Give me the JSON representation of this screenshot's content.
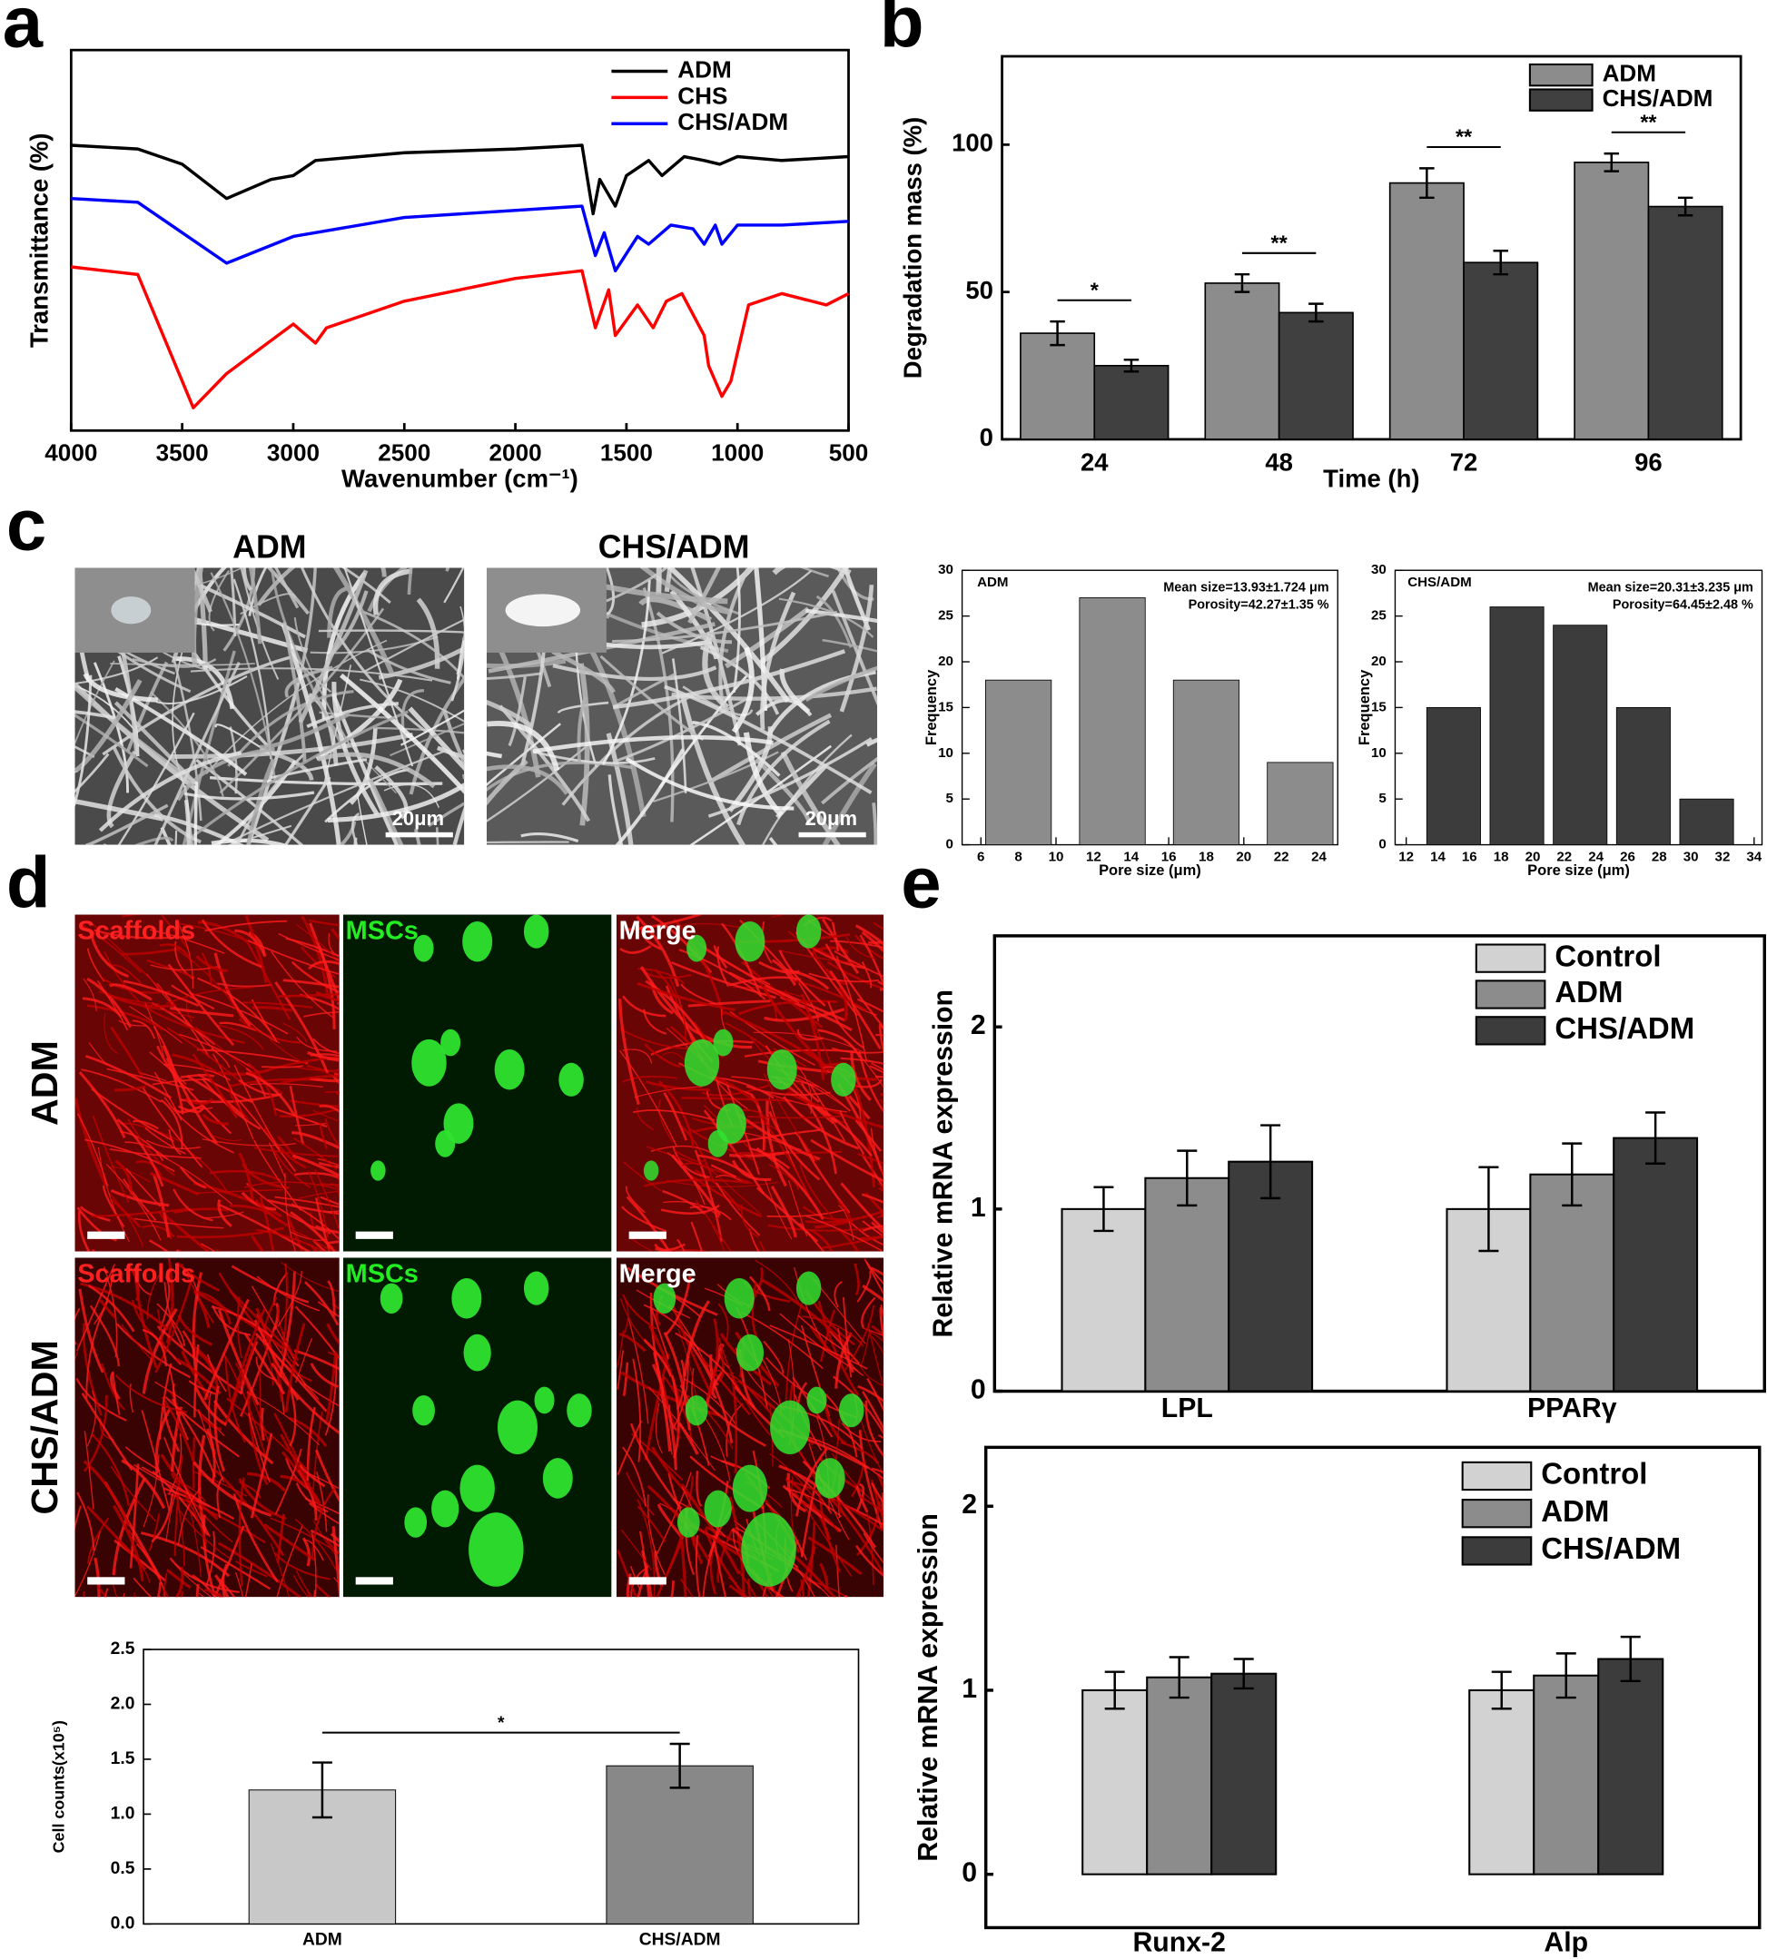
{
  "panel_labels": [
    "a",
    "b",
    "c",
    "d",
    "e"
  ],
  "micrographs": {
    "titles": [
      "ADM",
      "CHS/ADM"
    ],
    "scale_bar": "20μm"
  },
  "fluorescence": {
    "columns": [
      "Scaffolds",
      "MSCs",
      "Merge"
    ],
    "rows": [
      "ADM",
      "CHS/ADM"
    ]
  },
  "chart_data": [
    {
      "type": "line",
      "xlabel": "Wavenumber (cm⁻¹)",
      "ylabel": "Transmittance (%)",
      "xlim": [
        4000,
        500
      ],
      "xticks": [
        4000,
        3500,
        3000,
        2500,
        2000,
        1500,
        1000,
        500
      ],
      "ylim": [
        0,
        100
      ],
      "legend": "upper right",
      "series": [
        {
          "name": "ADM",
          "color": "#000000",
          "x": [
            4000,
            3700,
            3500,
            3300,
            3100,
            3000,
            2900,
            2500,
            2000,
            1700,
            1650,
            1620,
            1550,
            1500,
            1450,
            1400,
            1340,
            1240,
            1150,
            1080,
            1000,
            800,
            500
          ],
          "values": [
            75,
            74,
            70,
            61,
            66,
            67,
            71,
            73,
            74,
            75,
            57,
            66,
            59,
            67,
            69,
            71,
            67,
            72,
            71,
            70,
            72,
            71,
            72
          ]
        },
        {
          "name": "CHS",
          "color": "#ff0000",
          "x": [
            4000,
            3700,
            3450,
            3300,
            3000,
            2900,
            2850,
            2500,
            2000,
            1700,
            1640,
            1580,
            1550,
            1450,
            1380,
            1320,
            1250,
            1150,
            1130,
            1070,
            1030,
            950,
            800,
            600,
            500
          ],
          "values": [
            43,
            41,
            6,
            15,
            28,
            23,
            27,
            34,
            40,
            42,
            27,
            37,
            25,
            33,
            27,
            34,
            36,
            25,
            17,
            9,
            13,
            33,
            36,
            33,
            36
          ]
        },
        {
          "name": "CHS/ADM",
          "color": "#0000ff",
          "x": [
            4000,
            3700,
            3500,
            3300,
            3000,
            2500,
            1700,
            1640,
            1600,
            1550,
            1450,
            1400,
            1300,
            1200,
            1150,
            1100,
            1070,
            1000,
            800,
            500
          ],
          "values": [
            61,
            60,
            52,
            44,
            51,
            56,
            59,
            46,
            52,
            42,
            51,
            49,
            54,
            53,
            49,
            54,
            49,
            54,
            54,
            55
          ]
        }
      ]
    },
    {
      "type": "bar",
      "xlabel": "Time (h)",
      "ylabel": "Degradation mass (%)",
      "categories": [
        "24",
        "48",
        "72",
        "96"
      ],
      "series": [
        {
          "name": "ADM",
          "color": "#8c8c8c",
          "values": [
            36,
            53,
            87,
            94
          ],
          "errors": [
            4,
            3,
            5,
            3
          ]
        },
        {
          "name": "CHS/ADM",
          "color": "#404040",
          "values": [
            25,
            43,
            60,
            79
          ],
          "errors": [
            2,
            3,
            4,
            3
          ]
        }
      ],
      "significance": [
        "*",
        "**",
        "**",
        "**"
      ],
      "ylim": [
        0,
        130
      ],
      "yticks": [
        0,
        50,
        100
      ],
      "legend": "upper right"
    },
    {
      "type": "bar",
      "title": "ADM",
      "annotations": [
        "Mean size=13.93±1.724 μm",
        "Porosity=42.27±1.35 %"
      ],
      "x": [
        8,
        13,
        18,
        23
      ],
      "values": [
        18,
        27,
        18,
        9
      ],
      "color": "#8c8c8c",
      "xlabel": "Pore size (μm)",
      "ylabel": "Frequency",
      "xlim": [
        5,
        25
      ],
      "xticks": [
        6,
        8,
        10,
        12,
        14,
        16,
        18,
        20,
        22,
        24
      ],
      "ylim": [
        0,
        30
      ],
      "yticks": [
        0,
        5,
        10,
        15,
        20,
        25,
        30
      ]
    },
    {
      "type": "bar",
      "title": "CHS/ADM",
      "annotations": [
        "Mean size=20.31±3.235 μm",
        "Porosity=64.45±2.48 %"
      ],
      "x": [
        15,
        19,
        23,
        27,
        31
      ],
      "values": [
        15,
        26,
        24,
        15,
        5
      ],
      "color": "#3c3c3c",
      "xlabel": "Pore size (μm)",
      "ylabel": "Frequency",
      "xlim": [
        11.3,
        34.5
      ],
      "xticks": [
        12,
        14,
        16,
        18,
        20,
        22,
        24,
        26,
        28,
        30,
        32,
        34
      ],
      "ylim": [
        0,
        30
      ],
      "yticks": [
        0,
        5,
        10,
        15,
        20,
        25,
        30
      ]
    },
    {
      "type": "bar",
      "ylabel": "Cell counts(x10⁵)",
      "categories": [
        "ADM",
        "CHS/ADM"
      ],
      "values": [
        1.22,
        1.44
      ],
      "errors": [
        0.25,
        0.2
      ],
      "colors": [
        "#c8c8c8",
        "#888888"
      ],
      "significance": "*",
      "ylim": [
        0,
        2.5
      ],
      "yticks": [
        {
          "value": 0,
          "label": "0.0"
        },
        0.5,
        {
          "value": 1,
          "label": "1.0"
        },
        1.5,
        {
          "value": 2,
          "label": "2.0"
        },
        2.5
      ]
    },
    {
      "type": "bar",
      "ylabel": "Relative mRNA expression",
      "categories": [
        "LPL",
        "PPARγ"
      ],
      "series": [
        {
          "name": "Control",
          "color": "#d2d2d2",
          "values": [
            1.0,
            1.0
          ],
          "errors": [
            0.12,
            0.23
          ]
        },
        {
          "name": "ADM",
          "color": "#8c8c8c",
          "values": [
            1.17,
            1.19
          ],
          "errors": [
            0.15,
            0.17
          ]
        },
        {
          "name": "CHS/ADM",
          "color": "#3c3c3c",
          "values": [
            1.26,
            1.39
          ],
          "errors": [
            0.2,
            0.14
          ]
        }
      ],
      "ylim": [
        0,
        2.5
      ],
      "yticks": [
        0,
        1,
        2
      ],
      "legend": "upper right"
    },
    {
      "type": "bar",
      "ylabel": "Relative mRNA expression",
      "categories": [
        "Runx-2",
        "Alp"
      ],
      "series": [
        {
          "name": "Control",
          "color": "#d2d2d2",
          "values": [
            1.0,
            1.0
          ],
          "errors": [
            0.1,
            0.1
          ]
        },
        {
          "name": "ADM",
          "color": "#8c8c8c",
          "values": [
            1.07,
            1.08
          ],
          "errors": [
            0.11,
            0.12
          ]
        },
        {
          "name": "CHS/ADM",
          "color": "#3c3c3c",
          "values": [
            1.09,
            1.17
          ],
          "errors": [
            0.08,
            0.12
          ]
        }
      ],
      "ylim": [
        -0.29,
        2.32
      ],
      "yticks": [
        0,
        1,
        2
      ],
      "legend": "upper right"
    }
  ]
}
